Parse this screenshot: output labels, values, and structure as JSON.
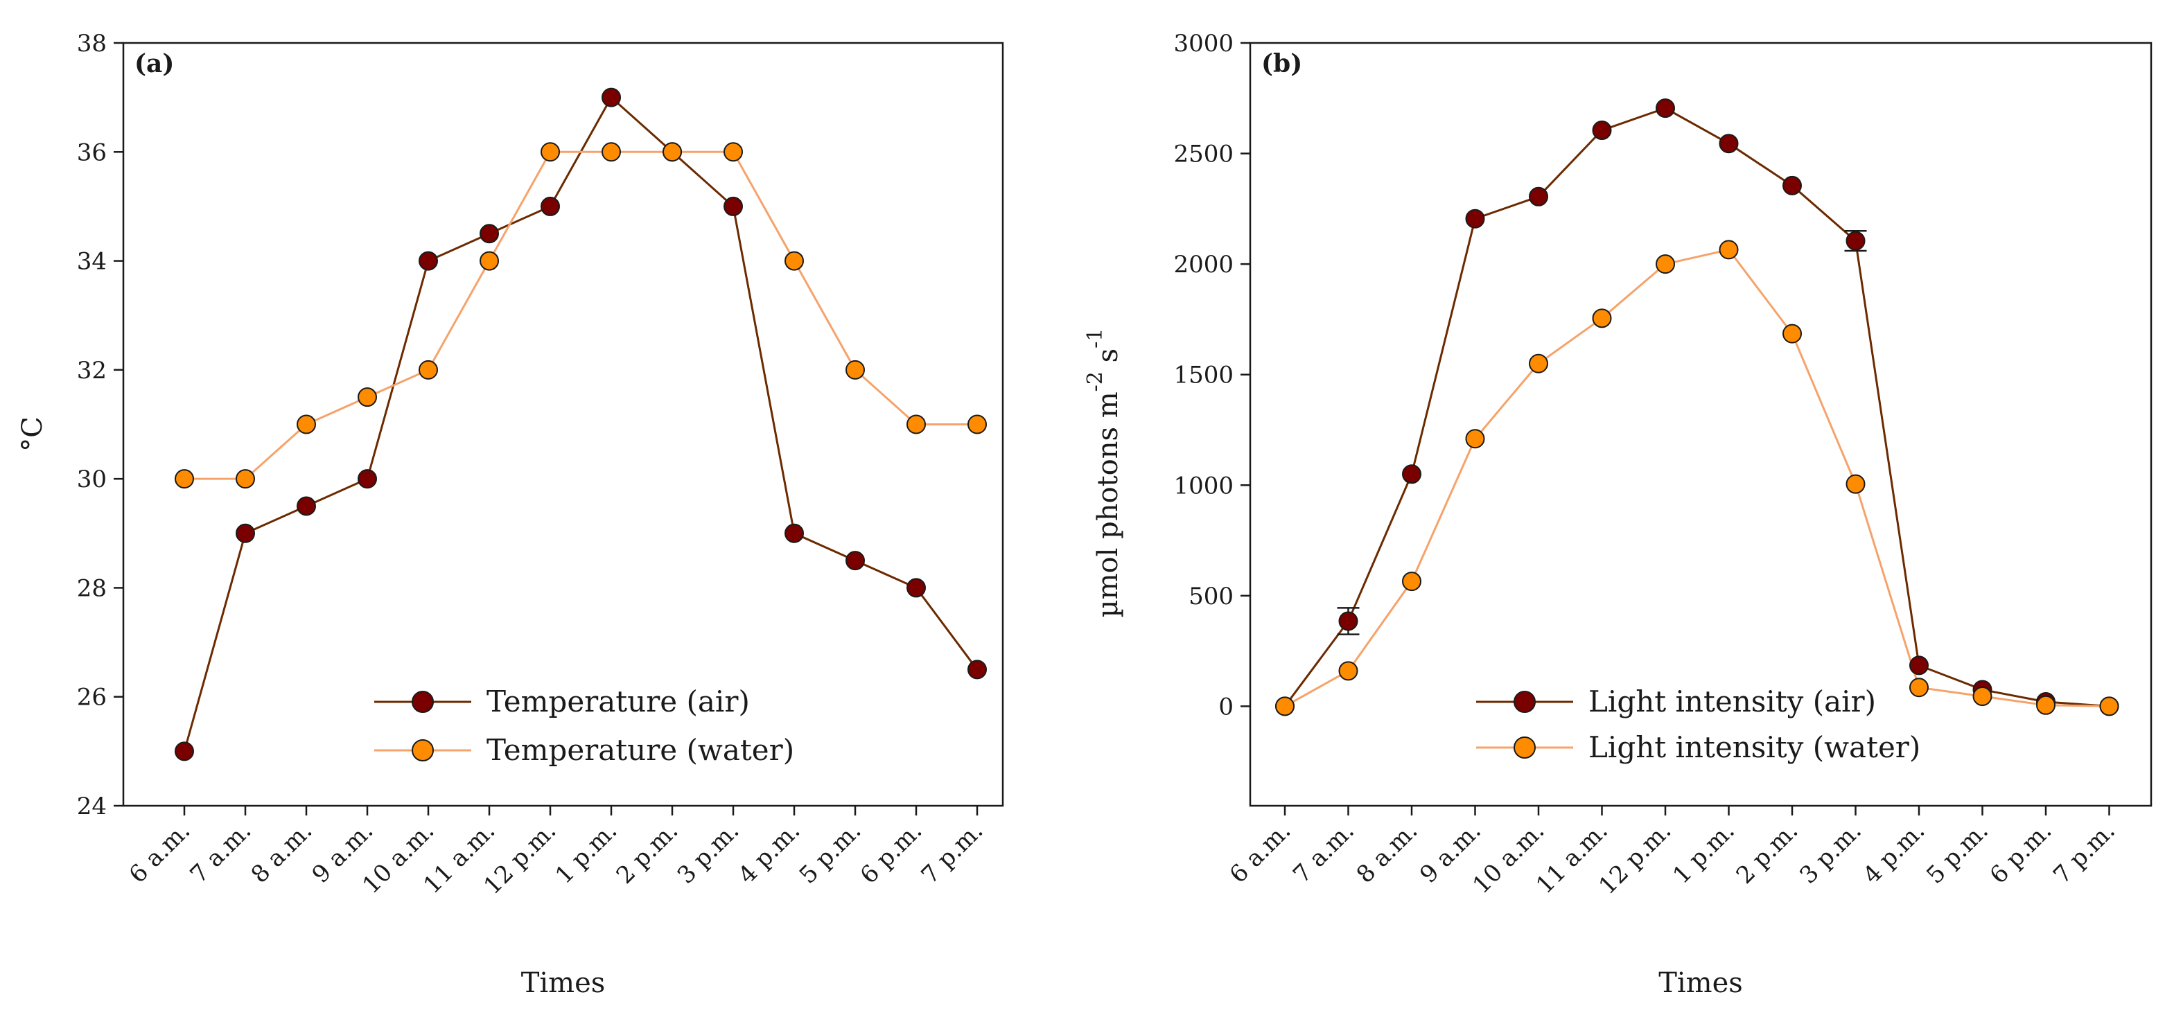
{
  "colors": {
    "air": "#7a0000",
    "water": "#ff8c00",
    "air_line": "#6b2a00",
    "water_line": "#f5a36b"
  },
  "chart_data": [
    {
      "type": "line",
      "panel_label": "(a)",
      "title": "",
      "xlabel": "Times",
      "ylabel": "°C",
      "categories": [
        "6 a.m.",
        "7 a.m.",
        "8 a.m.",
        "9 a.m.",
        "10 a.m.",
        "11 a.m.",
        "12 p.m.",
        "1 p.m.",
        "2 p.m.",
        "3 p.m.",
        "4 p.m.",
        "5 p.m.",
        "6 p.m.",
        "7 p.m."
      ],
      "ylim": [
        24,
        38
      ],
      "yticks": [
        24,
        26,
        28,
        30,
        32,
        34,
        36,
        38
      ],
      "legend_position": "bottom-center",
      "series": [
        {
          "name": "Temperature (air)",
          "values": [
            25,
            29,
            29.5,
            30,
            34,
            34.5,
            35,
            37,
            36,
            35,
            29,
            28.5,
            28,
            26.5
          ]
        },
        {
          "name": "Temperature (water)",
          "values": [
            30,
            30,
            31,
            31.5,
            32,
            34,
            36,
            36,
            36,
            36,
            34,
            32,
            31,
            31
          ]
        }
      ]
    },
    {
      "type": "line",
      "panel_label": "(b)",
      "title": "",
      "xlabel": "Times",
      "ylabel": "µmol photons m",
      "ylabel_sup1": "-2",
      "ylabel_mid": " s",
      "ylabel_sup2": "-1",
      "categories": [
        "6 a.m.",
        "7 a.m.",
        "8 a.m.",
        "9 a.m.",
        "10 a.m.",
        "11 a.m.",
        "12 p.m.",
        "1 p.m.",
        "2 p.m.",
        "3 p.m.",
        "4 p.m.",
        "5 p.m.",
        "6 p.m.",
        "7 p.m."
      ],
      "ylim": [
        -450,
        3000
      ],
      "yticks": [
        0,
        500,
        1000,
        1500,
        2000,
        2500,
        3000
      ],
      "legend_position": "bottom-right",
      "series": [
        {
          "name": "Light intensity (air)",
          "values": [
            0,
            385,
            1050,
            2205,
            2305,
            2605,
            2705,
            2545,
            2355,
            2105,
            185,
            75,
            20,
            0
          ],
          "errors": [
            0,
            60,
            0,
            0,
            0,
            0,
            0,
            0,
            0,
            45,
            0,
            0,
            0,
            0
          ]
        },
        {
          "name": "Light intensity (water)",
          "values": [
            0,
            160,
            565,
            1210,
            1550,
            1755,
            2000,
            2065,
            1685,
            1005,
            85,
            45,
            5,
            0
          ],
          "errors": [
            0,
            0,
            0,
            0,
            0,
            0,
            0,
            0,
            0,
            0,
            0,
            0,
            0,
            0
          ]
        }
      ]
    }
  ]
}
